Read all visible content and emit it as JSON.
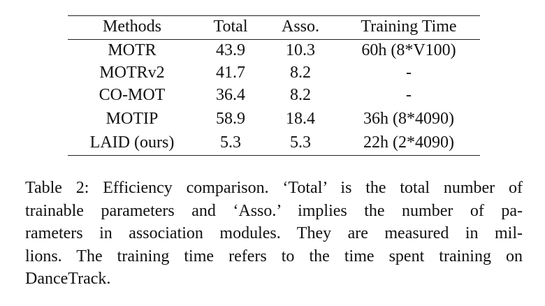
{
  "table": {
    "header": [
      "Methods",
      "Total",
      "Asso.",
      "Training Time"
    ],
    "rows": [
      [
        "MOTR",
        "43.9",
        "10.3",
        "60h (8*V100)"
      ],
      [
        "MOTRv2",
        "41.7",
        "8.2",
        "-"
      ],
      [
        "CO-MOT",
        "36.4",
        "8.2",
        "-"
      ],
      [
        "MOTIP",
        "58.9",
        "18.4",
        "36h (8*4090)"
      ],
      [
        "LAID (ours)",
        "5.3",
        "5.3",
        "22h (2*4090)"
      ]
    ]
  },
  "caption": {
    "lines": [
      "Table 2: Efficiency comparison. ‘Total’ is the total number of",
      "trainable parameters and ‘Asso.’ implies the number of pa-",
      "rameters in association modules. They are measured in mil-",
      "lions. The training time refers to the time spent training on",
      "DanceTrack."
    ]
  }
}
